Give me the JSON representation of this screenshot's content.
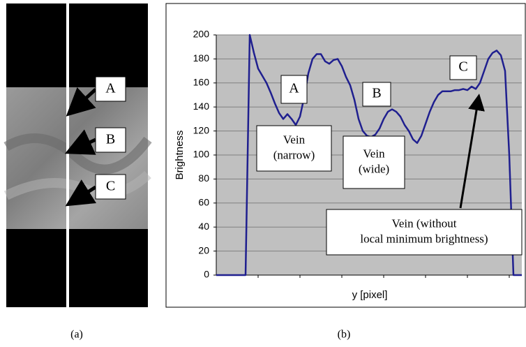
{
  "panel_a": {
    "labels": [
      "A",
      "B",
      "C"
    ]
  },
  "captions": [
    "(a)",
    "(b)"
  ],
  "chart_data": {
    "type": "line",
    "ylabel": "Brightness",
    "xlabel": "y [pixel]",
    "values": [
      0,
      0,
      0,
      0,
      0,
      0,
      0,
      0,
      200,
      185,
      172,
      166,
      160,
      152,
      143,
      135,
      130,
      134,
      130,
      125,
      132,
      148,
      168,
      180,
      184,
      184,
      178,
      176,
      179,
      180,
      174,
      165,
      158,
      146,
      130,
      120,
      116,
      115,
      117,
      122,
      130,
      136,
      138,
      136,
      132,
      125,
      120,
      113,
      110,
      116,
      126,
      136,
      144,
      150,
      153,
      153,
      153,
      154,
      154,
      155,
      154,
      157,
      155,
      160,
      170,
      180,
      185,
      187,
      183,
      170,
      100,
      0,
      0,
      0
    ],
    "color": "#1f1f8f",
    "ylim": [
      0,
      200
    ],
    "yticks": [
      0,
      20,
      40,
      60,
      80,
      100,
      120,
      140,
      160,
      180,
      200
    ],
    "grid": true,
    "annotations": [
      [
        "A"
      ],
      [
        "B"
      ],
      [
        "C"
      ],
      [
        "Vein",
        "(narrow)"
      ],
      [
        "Vein",
        "(wide)"
      ],
      [
        "Vein (without",
        "local minimum brightness)"
      ]
    ]
  }
}
